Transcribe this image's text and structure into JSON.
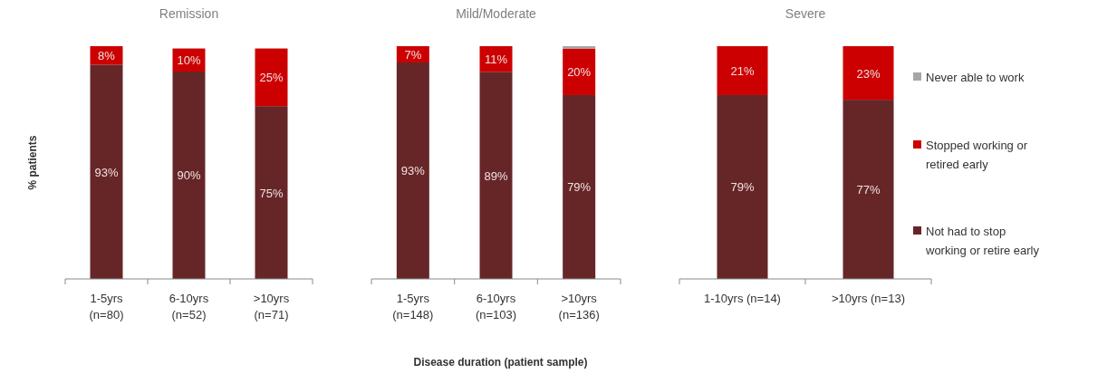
{
  "chart_data": [
    {
      "type": "bar",
      "title": "Remission",
      "ylabel": "% patients",
      "stacked": true,
      "legend": false,
      "categories": [
        "1-5yrs\n(n=80)",
        "6-10yrs\n(n=52)",
        ">10yrs\n(n=71)"
      ],
      "series": [
        {
          "color": "#662628",
          "values": [
            93,
            90,
            75
          ],
          "value_labels": [
            "93%",
            "90%",
            "75%"
          ]
        },
        {
          "color": "#cc0000",
          "values": [
            8,
            10,
            25
          ],
          "value_labels": [
            "8%",
            "10%",
            "25%"
          ]
        }
      ]
    },
    {
      "type": "bar",
      "title": "Mild/Moderate",
      "xlabel": "Disease duration (patient sample)",
      "stacked": true,
      "legend": false,
      "categories": [
        "1-5yrs\n(n=148)",
        "6-10yrs\n(n=103)",
        ">10yrs\n(n=136)"
      ],
      "series": [
        {
          "color": "#662628",
          "values": [
            93,
            89,
            79
          ],
          "value_labels": [
            "93%",
            "89%",
            "79%"
          ]
        },
        {
          "color": "#cc0000",
          "values": [
            7,
            11,
            20
          ],
          "value_labels": [
            "7%",
            "11%",
            "20%"
          ]
        },
        {
          "color": "#a6a6a6",
          "values": [
            null,
            null,
            1
          ],
          "value_labels": [
            null,
            null,
            null
          ]
        }
      ]
    },
    {
      "type": "bar",
      "title": "Severe",
      "stacked": true,
      "legend": "right",
      "categories": [
        "1-10yrs (n=14)",
        ">10yrs (n=13)"
      ],
      "series": [
        {
          "name": "Not had to stop\nworking or retire early",
          "color": "#662628",
          "values": [
            79,
            77
          ],
          "value_labels": [
            "79%",
            "77%"
          ]
        },
        {
          "name": "Stopped working or\nretired early",
          "color": "#cc0000",
          "values": [
            21,
            23
          ],
          "value_labels": [
            "21%",
            "23%"
          ]
        },
        {
          "name": "Never able to work",
          "color": "#a6a6a6",
          "values": [
            null,
            null
          ],
          "value_labels": [
            null,
            null
          ]
        }
      ]
    }
  ]
}
